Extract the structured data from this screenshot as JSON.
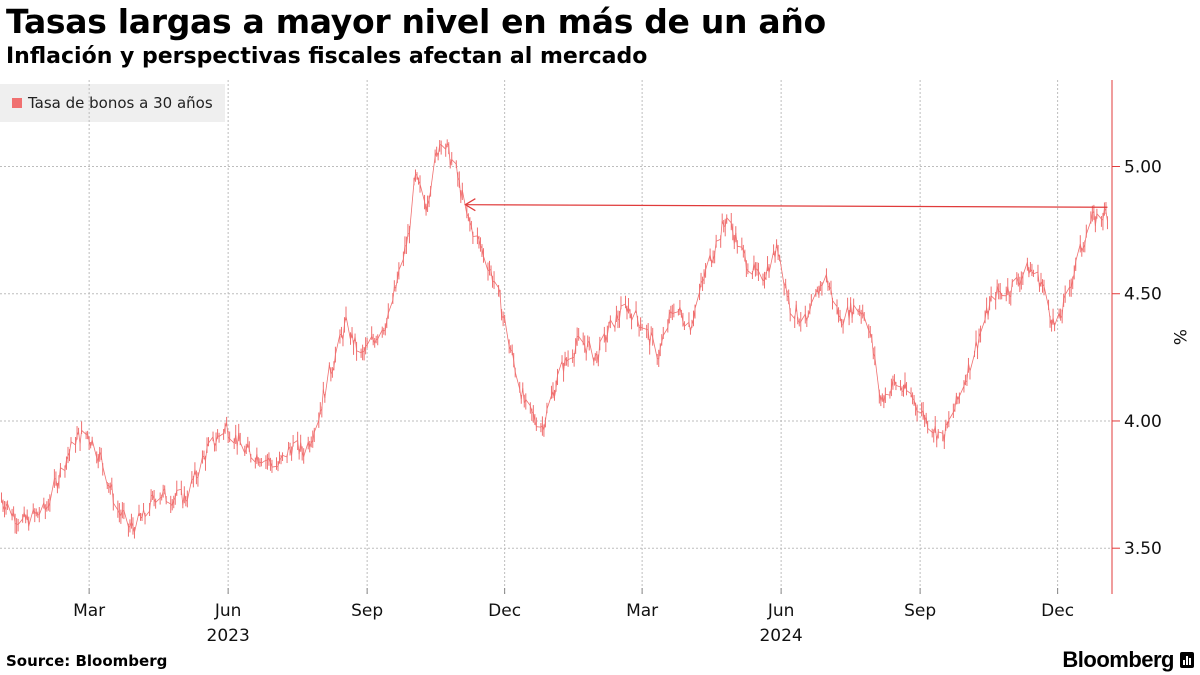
{
  "title": "Tasas largas a mayor nivel en más de un año",
  "subtitle": "Inflación y perspectivas fiscales afectan al mercado",
  "legend": {
    "label": "Tasa de bonos a 30 años",
    "color": "#f07070"
  },
  "source": "Source: Bloomberg",
  "brand": "Bloomberg",
  "colors": {
    "series": "#f07070",
    "axis": "#e03b3b",
    "grid": "#bdbdbd"
  },
  "chart_data": {
    "type": "line",
    "title": "Tasas largas a mayor nivel en más de un año",
    "subtitle": "Inflación y perspectivas fiscales afectan al mercado",
    "ylabel": "%",
    "ylim": [
      3.32,
      5.34
    ],
    "y_ticks": [
      5.0,
      4.5,
      4.0,
      3.5
    ],
    "y_tick_labels": [
      "5.00",
      "4.50",
      "4.00",
      "3.50"
    ],
    "x_range": [
      "2023-01-01",
      "2025-01-06"
    ],
    "x_ticks": [
      {
        "date": "2023-03-01",
        "label": "Mar"
      },
      {
        "date": "2023-06-01",
        "label": "Jun"
      },
      {
        "date": "2023-09-01",
        "label": "Sep"
      },
      {
        "date": "2023-12-01",
        "label": "Dec"
      },
      {
        "date": "2024-03-01",
        "label": "Mar"
      },
      {
        "date": "2024-06-01",
        "label": "Jun"
      },
      {
        "date": "2024-09-01",
        "label": "Sep"
      },
      {
        "date": "2024-12-01",
        "label": "Dec"
      }
    ],
    "year_labels": [
      {
        "date": "2023-06-01",
        "label": "2023"
      },
      {
        "date": "2024-06-01",
        "label": "2024"
      }
    ],
    "series": [
      {
        "name": "Tasa de bonos a 30 años",
        "points": [
          [
            "2023-01-01",
            3.7
          ],
          [
            "2023-01-15",
            3.6
          ],
          [
            "2023-01-31",
            3.65
          ],
          [
            "2023-02-10",
            3.8
          ],
          [
            "2023-02-20",
            3.93
          ],
          [
            "2023-02-28",
            3.95
          ],
          [
            "2023-03-09",
            3.85
          ],
          [
            "2023-03-20",
            3.65
          ],
          [
            "2023-03-28",
            3.58
          ],
          [
            "2023-04-06",
            3.62
          ],
          [
            "2023-04-15",
            3.72
          ],
          [
            "2023-04-22",
            3.7
          ],
          [
            "2023-05-04",
            3.7
          ],
          [
            "2023-05-18",
            3.88
          ],
          [
            "2023-05-31",
            3.98
          ],
          [
            "2023-06-13",
            3.88
          ],
          [
            "2023-06-24",
            3.86
          ],
          [
            "2023-07-04",
            3.82
          ],
          [
            "2023-07-13",
            3.9
          ],
          [
            "2023-07-22",
            3.88
          ],
          [
            "2023-07-31",
            4.02
          ],
          [
            "2023-08-05",
            4.15
          ],
          [
            "2023-08-18",
            4.38
          ],
          [
            "2023-08-28",
            4.25
          ],
          [
            "2023-09-06",
            4.33
          ],
          [
            "2023-09-15",
            4.4
          ],
          [
            "2023-09-28",
            4.72
          ],
          [
            "2023-10-03",
            4.95
          ],
          [
            "2023-10-10",
            4.85
          ],
          [
            "2023-10-20",
            5.12
          ],
          [
            "2023-10-30",
            4.98
          ],
          [
            "2023-11-06",
            4.8
          ],
          [
            "2023-11-18",
            4.65
          ],
          [
            "2023-11-26",
            4.52
          ],
          [
            "2023-12-05",
            4.28
          ],
          [
            "2023-12-15",
            4.05
          ],
          [
            "2023-12-26",
            3.98
          ],
          [
            "2024-01-07",
            4.2
          ],
          [
            "2024-01-20",
            4.32
          ],
          [
            "2024-01-31",
            4.25
          ],
          [
            "2024-02-10",
            4.38
          ],
          [
            "2024-02-20",
            4.45
          ],
          [
            "2024-03-01",
            4.38
          ],
          [
            "2024-03-12",
            4.26
          ],
          [
            "2024-03-22",
            4.45
          ],
          [
            "2024-04-02",
            4.38
          ],
          [
            "2024-04-14",
            4.62
          ],
          [
            "2024-04-26",
            4.8
          ],
          [
            "2024-05-07",
            4.65
          ],
          [
            "2024-05-18",
            4.55
          ],
          [
            "2024-05-30",
            4.68
          ],
          [
            "2024-06-07",
            4.45
          ],
          [
            "2024-06-18",
            4.38
          ],
          [
            "2024-06-30",
            4.58
          ],
          [
            "2024-07-10",
            4.4
          ],
          [
            "2024-07-20",
            4.45
          ],
          [
            "2024-07-28",
            4.42
          ],
          [
            "2024-08-06",
            4.08
          ],
          [
            "2024-08-15",
            4.15
          ],
          [
            "2024-08-26",
            4.1
          ],
          [
            "2024-09-06",
            4.0
          ],
          [
            "2024-09-16",
            3.93
          ],
          [
            "2024-09-26",
            4.08
          ],
          [
            "2024-10-07",
            4.28
          ],
          [
            "2024-10-20",
            4.5
          ],
          [
            "2024-10-31",
            4.52
          ],
          [
            "2024-11-12",
            4.6
          ],
          [
            "2024-11-20",
            4.55
          ],
          [
            "2024-11-30",
            4.35
          ],
          [
            "2024-12-10",
            4.55
          ],
          [
            "2024-12-22",
            4.78
          ],
          [
            "2025-01-03",
            4.82
          ]
        ]
      }
    ],
    "annotation": {
      "type": "arrow",
      "from": {
        "date": "2025-01-03",
        "value": 4.84
      },
      "to": {
        "date": "2023-11-05",
        "value": 4.85
      },
      "label": ""
    }
  }
}
